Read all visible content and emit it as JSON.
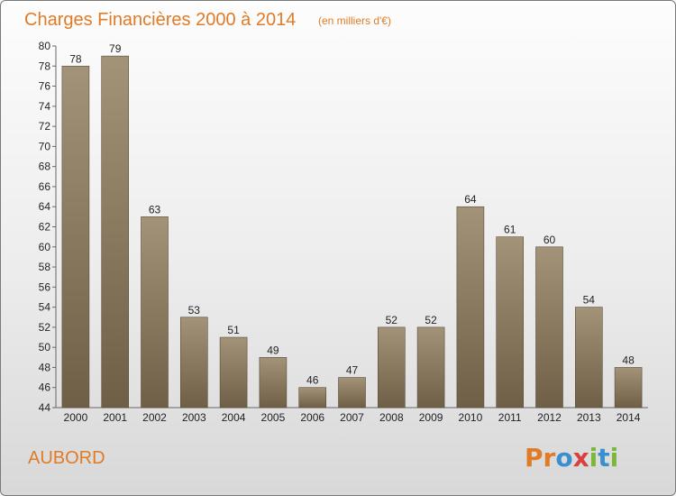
{
  "chart_data": {
    "type": "bar",
    "title": "Charges Financières 2000 à 2014",
    "subtitle": "(en milliers d'€)",
    "categories": [
      "2000",
      "2001",
      "2002",
      "2003",
      "2004",
      "2005",
      "2006",
      "2007",
      "2008",
      "2009",
      "2010",
      "2011",
      "2012",
      "2013",
      "2014"
    ],
    "values": [
      78,
      79,
      63,
      53,
      51,
      49,
      46,
      47,
      52,
      52,
      64,
      61,
      60,
      54,
      48
    ],
    "ylim": [
      44,
      80
    ],
    "ytick_step": 2,
    "grid": false,
    "legend": "none",
    "bar_color": "#8c7a5e"
  },
  "commune": "AUBORD",
  "logo": {
    "letters": [
      "P",
      "r",
      "o",
      "x",
      "i",
      "t",
      "i"
    ],
    "colors": [
      "#e07b27",
      "#e07b27",
      "#3a8fd0",
      "#d94141",
      "#7bb83a",
      "#3a8fd0",
      "#7bb83a"
    ]
  }
}
